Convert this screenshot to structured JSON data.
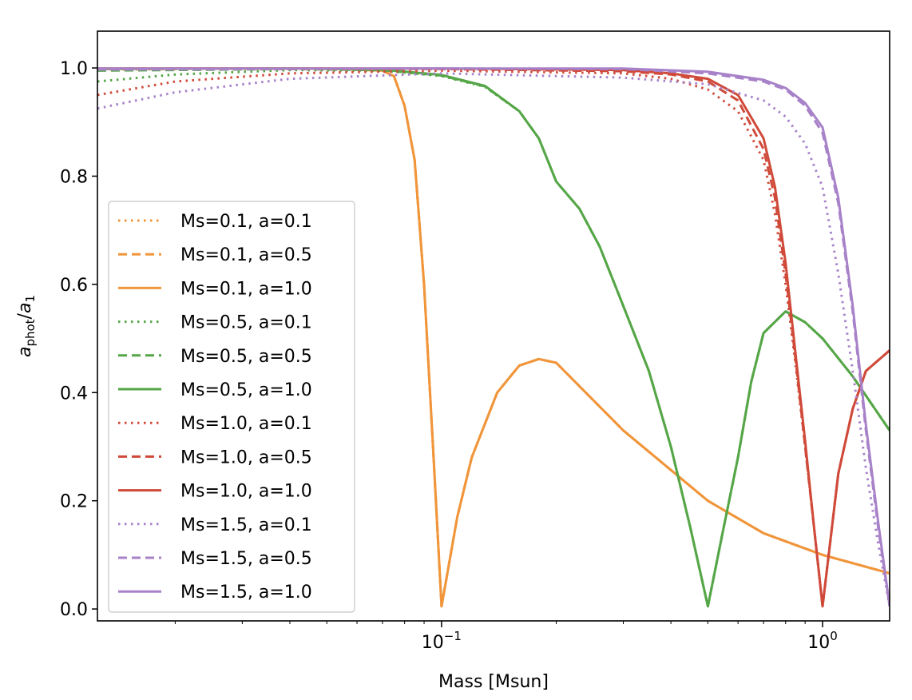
{
  "chart_data": {
    "type": "line",
    "title": "",
    "xlabel": "Mass [Msun]",
    "ylabel_main": "a",
    "ylabel_sub1": "phot",
    "ylabel_slash": "/",
    "ylabel_main2": "a",
    "ylabel_sub2": "1",
    "xscale": "log",
    "xlim": [
      0.0125,
      1.5
    ],
    "ylim": [
      -0.022,
      1.068
    ],
    "x_ticks": [
      {
        "value": 0.1,
        "base": "10",
        "exp": "−1"
      },
      {
        "value": 1.0,
        "base": "10",
        "exp": "0"
      }
    ],
    "y_ticks": [
      {
        "value": 0.0,
        "label": "0.0"
      },
      {
        "value": 0.2,
        "label": "0.2"
      },
      {
        "value": 0.4,
        "label": "0.4"
      },
      {
        "value": 0.6,
        "label": "0.6"
      },
      {
        "value": 0.8,
        "label": "0.8"
      },
      {
        "value": 1.0,
        "label": "1.0"
      }
    ],
    "legend_position": "center-left",
    "series": [
      {
        "name": "Ms=0.1, a=0.1",
        "color": "#f0953a",
        "style": "dotted",
        "points": [
          [
            0.0125,
            0.997
          ],
          [
            0.05,
            0.999
          ],
          [
            0.07,
            0.995
          ],
          [
            0.075,
            0.985
          ],
          [
            0.08,
            0.93
          ],
          [
            0.085,
            0.83
          ],
          [
            0.09,
            0.6
          ],
          [
            0.095,
            0.3
          ],
          [
            0.1,
            0.005
          ],
          [
            0.11,
            0.17
          ],
          [
            0.12,
            0.28
          ],
          [
            0.14,
            0.4
          ],
          [
            0.16,
            0.45
          ],
          [
            0.18,
            0.462
          ],
          [
            0.2,
            0.455
          ],
          [
            0.3,
            0.33
          ],
          [
            0.5,
            0.2
          ],
          [
            0.7,
            0.14
          ],
          [
            1.0,
            0.1
          ],
          [
            1.5,
            0.066
          ]
        ]
      },
      {
        "name": "Ms=0.1, a=0.5",
        "color": "#f0953a",
        "style": "dashed",
        "points": [
          [
            0.0125,
            0.998
          ],
          [
            0.05,
            0.999
          ],
          [
            0.07,
            0.995
          ],
          [
            0.075,
            0.985
          ],
          [
            0.08,
            0.93
          ],
          [
            0.085,
            0.83
          ],
          [
            0.09,
            0.6
          ],
          [
            0.095,
            0.3
          ],
          [
            0.1,
            0.005
          ],
          [
            0.11,
            0.17
          ],
          [
            0.12,
            0.28
          ],
          [
            0.14,
            0.4
          ],
          [
            0.16,
            0.45
          ],
          [
            0.18,
            0.462
          ],
          [
            0.2,
            0.455
          ],
          [
            0.3,
            0.33
          ],
          [
            0.5,
            0.2
          ],
          [
            0.7,
            0.14
          ],
          [
            1.0,
            0.1
          ],
          [
            1.5,
            0.066
          ]
        ]
      },
      {
        "name": "Ms=0.1, a=1.0",
        "color": "#f0953a",
        "style": "solid",
        "points": [
          [
            0.0125,
            0.999
          ],
          [
            0.05,
            0.999
          ],
          [
            0.07,
            0.995
          ],
          [
            0.075,
            0.985
          ],
          [
            0.08,
            0.93
          ],
          [
            0.085,
            0.83
          ],
          [
            0.09,
            0.6
          ],
          [
            0.095,
            0.3
          ],
          [
            0.1,
            0.005
          ],
          [
            0.11,
            0.17
          ],
          [
            0.12,
            0.28
          ],
          [
            0.14,
            0.4
          ],
          [
            0.16,
            0.45
          ],
          [
            0.18,
            0.462
          ],
          [
            0.2,
            0.455
          ],
          [
            0.3,
            0.33
          ],
          [
            0.5,
            0.2
          ],
          [
            0.7,
            0.14
          ],
          [
            1.0,
            0.1
          ],
          [
            1.5,
            0.066
          ]
        ]
      },
      {
        "name": "Ms=0.5, a=0.1",
        "color": "#55a647",
        "style": "dotted",
        "points": [
          [
            0.0125,
            0.975
          ],
          [
            0.02,
            0.988
          ],
          [
            0.04,
            0.996
          ],
          [
            0.07,
            0.995
          ],
          [
            0.1,
            0.985
          ],
          [
            0.13,
            0.965
          ],
          [
            0.16,
            0.92
          ],
          [
            0.18,
            0.87
          ],
          [
            0.2,
            0.79
          ],
          [
            0.23,
            0.74
          ],
          [
            0.26,
            0.67
          ],
          [
            0.3,
            0.56
          ],
          [
            0.35,
            0.44
          ],
          [
            0.4,
            0.3
          ],
          [
            0.45,
            0.15
          ],
          [
            0.5,
            0.005
          ],
          [
            0.55,
            0.15
          ],
          [
            0.6,
            0.28
          ],
          [
            0.65,
            0.42
          ],
          [
            0.7,
            0.51
          ],
          [
            0.8,
            0.55
          ],
          [
            0.9,
            0.53
          ],
          [
            1.0,
            0.5
          ],
          [
            1.2,
            0.43
          ],
          [
            1.5,
            0.33
          ]
        ]
      },
      {
        "name": "Ms=0.5, a=0.5",
        "color": "#55a647",
        "style": "dashed",
        "points": [
          [
            0.0125,
            0.995
          ],
          [
            0.04,
            0.998
          ],
          [
            0.07,
            0.996
          ],
          [
            0.1,
            0.986
          ],
          [
            0.13,
            0.966
          ],
          [
            0.16,
            0.92
          ],
          [
            0.18,
            0.87
          ],
          [
            0.2,
            0.79
          ],
          [
            0.23,
            0.74
          ],
          [
            0.26,
            0.67
          ],
          [
            0.3,
            0.56
          ],
          [
            0.35,
            0.44
          ],
          [
            0.4,
            0.3
          ],
          [
            0.45,
            0.15
          ],
          [
            0.5,
            0.005
          ],
          [
            0.55,
            0.15
          ],
          [
            0.6,
            0.28
          ],
          [
            0.65,
            0.42
          ],
          [
            0.7,
            0.51
          ],
          [
            0.8,
            0.55
          ],
          [
            0.9,
            0.53
          ],
          [
            1.0,
            0.5
          ],
          [
            1.2,
            0.43
          ],
          [
            1.5,
            0.33
          ]
        ]
      },
      {
        "name": "Ms=0.5, a=1.0",
        "color": "#55a647",
        "style": "solid",
        "points": [
          [
            0.0125,
            0.998
          ],
          [
            0.04,
            0.999
          ],
          [
            0.07,
            0.997
          ],
          [
            0.1,
            0.987
          ],
          [
            0.13,
            0.967
          ],
          [
            0.16,
            0.92
          ],
          [
            0.18,
            0.87
          ],
          [
            0.2,
            0.79
          ],
          [
            0.23,
            0.74
          ],
          [
            0.26,
            0.67
          ],
          [
            0.3,
            0.56
          ],
          [
            0.35,
            0.44
          ],
          [
            0.4,
            0.3
          ],
          [
            0.45,
            0.15
          ],
          [
            0.5,
            0.005
          ],
          [
            0.55,
            0.15
          ],
          [
            0.6,
            0.28
          ],
          [
            0.65,
            0.42
          ],
          [
            0.7,
            0.51
          ],
          [
            0.8,
            0.55
          ],
          [
            0.9,
            0.53
          ],
          [
            1.0,
            0.5
          ],
          [
            1.2,
            0.43
          ],
          [
            1.5,
            0.33
          ]
        ]
      },
      {
        "name": "Ms=1.0, a=0.1",
        "color": "#d04a3a",
        "style": "dotted",
        "points": [
          [
            0.0125,
            0.95
          ],
          [
            0.02,
            0.975
          ],
          [
            0.04,
            0.99
          ],
          [
            0.1,
            0.995
          ],
          [
            0.3,
            0.99
          ],
          [
            0.4,
            0.98
          ],
          [
            0.5,
            0.96
          ],
          [
            0.6,
            0.92
          ],
          [
            0.7,
            0.83
          ],
          [
            0.75,
            0.73
          ],
          [
            0.8,
            0.6
          ],
          [
            0.85,
            0.45
          ],
          [
            0.9,
            0.3
          ],
          [
            0.95,
            0.15
          ],
          [
            1.0,
            0.005
          ],
          [
            1.05,
            0.13
          ],
          [
            1.1,
            0.25
          ],
          [
            1.2,
            0.37
          ],
          [
            1.3,
            0.44
          ],
          [
            1.5,
            0.478
          ]
        ]
      },
      {
        "name": "Ms=1.0, a=0.5",
        "color": "#d04a3a",
        "style": "dashed",
        "points": [
          [
            0.0125,
            0.998
          ],
          [
            0.1,
            0.998
          ],
          [
            0.3,
            0.994
          ],
          [
            0.4,
            0.988
          ],
          [
            0.5,
            0.975
          ],
          [
            0.6,
            0.94
          ],
          [
            0.7,
            0.85
          ],
          [
            0.75,
            0.76
          ],
          [
            0.8,
            0.62
          ],
          [
            0.85,
            0.46
          ],
          [
            0.9,
            0.3
          ],
          [
            0.95,
            0.15
          ],
          [
            1.0,
            0.005
          ],
          [
            1.05,
            0.13
          ],
          [
            1.1,
            0.25
          ],
          [
            1.2,
            0.37
          ],
          [
            1.3,
            0.44
          ],
          [
            1.5,
            0.478
          ]
        ]
      },
      {
        "name": "Ms=1.0, a=1.0",
        "color": "#d04a3a",
        "style": "solid",
        "points": [
          [
            0.0125,
            0.999
          ],
          [
            0.1,
            0.999
          ],
          [
            0.3,
            0.996
          ],
          [
            0.4,
            0.99
          ],
          [
            0.5,
            0.98
          ],
          [
            0.6,
            0.95
          ],
          [
            0.7,
            0.87
          ],
          [
            0.75,
            0.78
          ],
          [
            0.8,
            0.64
          ],
          [
            0.85,
            0.47
          ],
          [
            0.9,
            0.31
          ],
          [
            0.95,
            0.15
          ],
          [
            1.0,
            0.005
          ],
          [
            1.05,
            0.13
          ],
          [
            1.1,
            0.25
          ],
          [
            1.2,
            0.37
          ],
          [
            1.3,
            0.44
          ],
          [
            1.5,
            0.478
          ]
        ]
      },
      {
        "name": "Ms=1.5, a=0.1",
        "color": "#a882c9",
        "style": "dotted",
        "points": [
          [
            0.0125,
            0.925
          ],
          [
            0.02,
            0.955
          ],
          [
            0.04,
            0.98
          ],
          [
            0.1,
            0.99
          ],
          [
            0.3,
            0.982
          ],
          [
            0.5,
            0.97
          ],
          [
            0.7,
            0.94
          ],
          [
            0.8,
            0.91
          ],
          [
            0.9,
            0.86
          ],
          [
            1.0,
            0.78
          ],
          [
            1.1,
            0.62
          ],
          [
            1.2,
            0.44
          ],
          [
            1.3,
            0.26
          ],
          [
            1.4,
            0.12
          ],
          [
            1.5,
            0.005
          ]
        ]
      },
      {
        "name": "Ms=1.5, a=0.5",
        "color": "#a882c9",
        "style": "dashed",
        "points": [
          [
            0.0125,
            0.997
          ],
          [
            0.1,
            0.999
          ],
          [
            0.3,
            0.998
          ],
          [
            0.5,
            0.99
          ],
          [
            0.7,
            0.975
          ],
          [
            0.8,
            0.96
          ],
          [
            0.9,
            0.93
          ],
          [
            1.0,
            0.88
          ],
          [
            1.1,
            0.75
          ],
          [
            1.2,
            0.55
          ],
          [
            1.3,
            0.33
          ],
          [
            1.4,
            0.15
          ],
          [
            1.5,
            0.005
          ]
        ]
      },
      {
        "name": "Ms=1.5, a=1.0",
        "color": "#a882c9",
        "style": "solid",
        "points": [
          [
            0.0125,
            0.999
          ],
          [
            0.1,
            0.999
          ],
          [
            0.3,
            0.999
          ],
          [
            0.5,
            0.993
          ],
          [
            0.7,
            0.978
          ],
          [
            0.8,
            0.963
          ],
          [
            0.9,
            0.935
          ],
          [
            1.0,
            0.89
          ],
          [
            1.1,
            0.76
          ],
          [
            1.2,
            0.56
          ],
          [
            1.3,
            0.34
          ],
          [
            1.4,
            0.16
          ],
          [
            1.5,
            0.005
          ]
        ]
      }
    ]
  }
}
